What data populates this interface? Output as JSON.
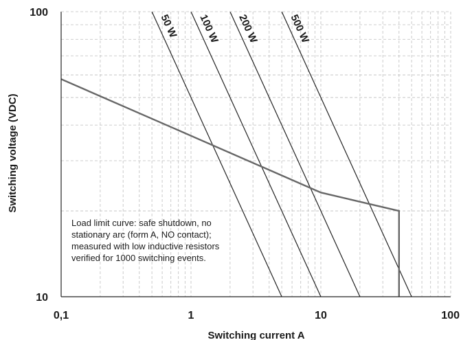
{
  "chart_data": {
    "type": "line",
    "xscale": "log",
    "yscale": "log",
    "xlim": [
      0.1,
      100
    ],
    "ylim": [
      10,
      100
    ],
    "grid": true,
    "xlabel": "Switching current A",
    "ylabel": "Switching voltage (VDC)",
    "x_ticks": [
      {
        "value": 0.1,
        "label": "0,1"
      },
      {
        "value": 1,
        "label": "1"
      },
      {
        "value": 10,
        "label": "10"
      },
      {
        "value": 100,
        "label": "100"
      }
    ],
    "y_ticks": [
      {
        "value": 10,
        "label": "10"
      },
      {
        "value": 100,
        "label": "100"
      }
    ],
    "power_lines": [
      {
        "label": "50 W",
        "watts": 50
      },
      {
        "label": "100 W",
        "watts": 100
      },
      {
        "label": "200 W",
        "watts": 200
      },
      {
        "label": "500 W",
        "watts": 500
      }
    ],
    "series": [
      {
        "x": [
          0.1,
          1,
          10,
          40,
          40
        ],
        "y": [
          58,
          36.7,
          23.2,
          20,
          10
        ]
      }
    ],
    "annotation": "Load limit curve: safe shutdown, no stationary arc (form A, NO contact); measured with low inductive resistors verified for 1000 switching events."
  }
}
